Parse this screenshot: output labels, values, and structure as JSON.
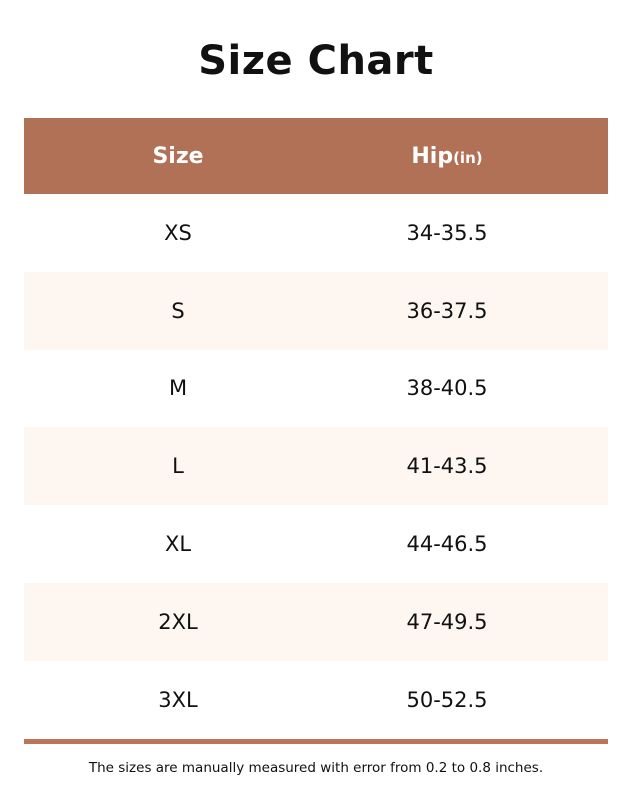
{
  "title": "Size Chart",
  "table": {
    "headers": [
      {
        "label": "Size"
      },
      {
        "label": "Hip",
        "unit": "(in)"
      }
    ],
    "rows": [
      {
        "size": "XS",
        "hip": "34-35.5"
      },
      {
        "size": "S",
        "hip": "36-37.5"
      },
      {
        "size": "M",
        "hip": "38-40.5"
      },
      {
        "size": "L",
        "hip": "41-43.5"
      },
      {
        "size": "XL",
        "hip": "44-46.5"
      },
      {
        "size": "2XL",
        "hip": "47-49.5"
      },
      {
        "size": "3XL",
        "hip": "50-52.5"
      }
    ]
  },
  "footer": "The sizes are manually measured with error from 0.2 to 0.8 inches.",
  "colors": {
    "header_bg": "#b07156",
    "stripe_bg": "#fdf6f1",
    "rule": "#be7456"
  }
}
